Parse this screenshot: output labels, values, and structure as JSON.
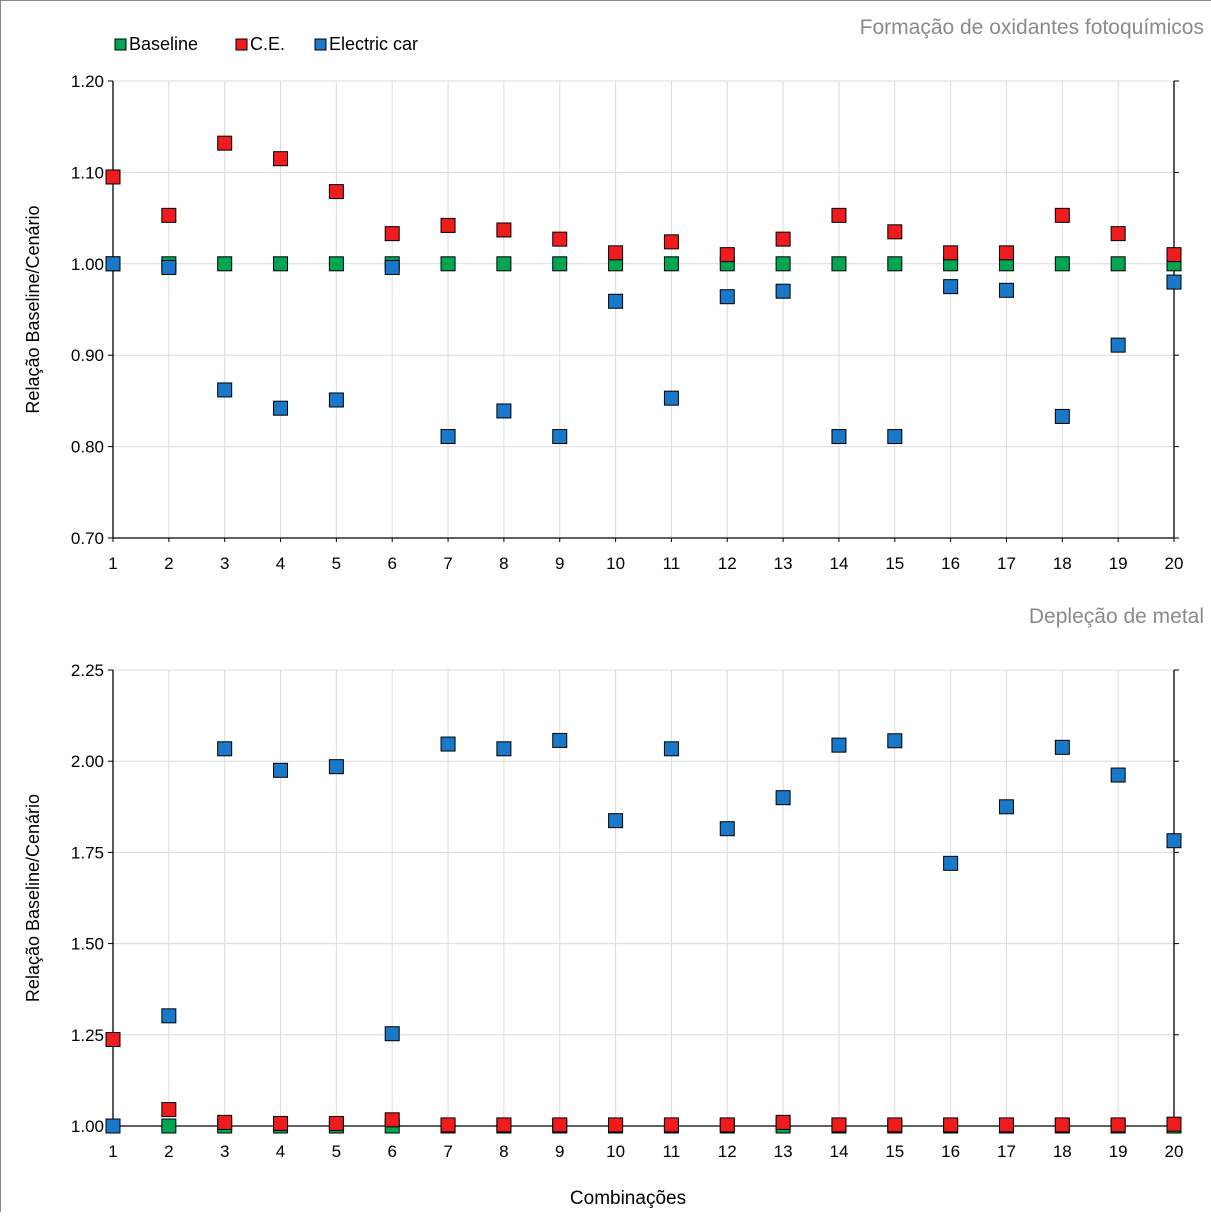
{
  "legend": [
    {
      "name": "Baseline",
      "color": "#00a651"
    },
    {
      "name": "C.E.",
      "color": "#ee1c1c"
    },
    {
      "name": "Electric car",
      "color": "#1a78c8"
    }
  ],
  "chart_data": [
    {
      "type": "scatter",
      "title": "Formação de oxidantes fotoquímicos",
      "xlabel": "",
      "ylabel": "Relação Baseline/Cenário",
      "x": [
        1,
        2,
        3,
        4,
        5,
        6,
        7,
        8,
        9,
        10,
        11,
        12,
        13,
        14,
        15,
        16,
        17,
        18,
        19,
        20
      ],
      "xticks": [
        "1",
        "2",
        "3",
        "4",
        "5",
        "6",
        "7",
        "8",
        "9",
        "10",
        "11",
        "12",
        "13",
        "14",
        "15",
        "16",
        "17",
        "18",
        "19",
        "20"
      ],
      "ylim": [
        0.7,
        1.2
      ],
      "yticks": [
        "0.70",
        "0.80",
        "0.90",
        "1.00",
        "1.10",
        "1.20"
      ],
      "ytick_values": [
        0.7,
        0.8,
        0.9,
        1.0,
        1.1,
        1.2
      ],
      "grid": true,
      "legend_position": "top-left",
      "series": [
        {
          "name": "Baseline",
          "color": "#00a651",
          "values": [
            1.0,
            1.0,
            1.0,
            1.0,
            1.0,
            1.0,
            1.0,
            1.0,
            1.0,
            1.0,
            1.0,
            1.0,
            1.0,
            1.0,
            1.0,
            1.0,
            1.0,
            1.0,
            1.0,
            1.0
          ]
        },
        {
          "name": "C.E.",
          "color": "#ee1c1c",
          "values": [
            1.095,
            1.053,
            1.132,
            1.115,
            1.079,
            1.033,
            1.042,
            1.037,
            1.027,
            1.012,
            1.024,
            1.01,
            1.027,
            1.053,
            1.035,
            1.012,
            1.012,
            1.053,
            1.033,
            1.01
          ]
        },
        {
          "name": "Electric car",
          "color": "#1a78c8",
          "values": [
            1.0,
            0.996,
            0.862,
            0.842,
            0.851,
            0.996,
            0.811,
            0.839,
            0.811,
            0.959,
            0.853,
            0.964,
            0.97,
            0.811,
            0.811,
            0.975,
            0.971,
            0.833,
            0.911,
            0.98
          ]
        }
      ]
    },
    {
      "type": "scatter",
      "title": "Depleção de metal",
      "xlabel": "Combinações",
      "ylabel": "Relação Baseline/Cenário",
      "x": [
        1,
        2,
        3,
        4,
        5,
        6,
        7,
        8,
        9,
        10,
        11,
        12,
        13,
        14,
        15,
        16,
        17,
        18,
        19,
        20
      ],
      "xticks": [
        "1",
        "2",
        "3",
        "4",
        "5",
        "6",
        "7",
        "8",
        "9",
        "10",
        "11",
        "12",
        "13",
        "14",
        "15",
        "16",
        "17",
        "18",
        "19",
        "20"
      ],
      "ylim": [
        1.0,
        2.25
      ],
      "yticks": [
        "1.00",
        "1.25",
        "1.50",
        "1.75",
        "2.00",
        "2.25"
      ],
      "ytick_values": [
        1.0,
        1.25,
        1.5,
        1.75,
        2.0,
        2.25
      ],
      "grid": true,
      "series": [
        {
          "name": "Baseline",
          "color": "#00a651",
          "values": [
            1.0,
            1.0,
            1.0,
            1.0,
            1.0,
            1.0,
            1.0,
            1.0,
            1.0,
            1.0,
            1.0,
            1.0,
            1.0,
            1.0,
            1.0,
            1.0,
            1.0,
            1.0,
            1.0,
            1.0
          ]
        },
        {
          "name": "C.E.",
          "color": "#ee1c1c",
          "values": [
            1.237,
            1.045,
            1.01,
            1.007,
            1.007,
            1.017,
            1.003,
            1.003,
            1.003,
            1.003,
            1.003,
            1.003,
            1.01,
            1.003,
            1.003,
            1.003,
            1.003,
            1.003,
            1.003,
            1.005
          ]
        },
        {
          "name": "Electric car",
          "color": "#1a78c8",
          "values": [
            1.0,
            1.302,
            2.034,
            1.975,
            1.985,
            1.253,
            2.047,
            2.034,
            2.057,
            1.837,
            2.034,
            1.815,
            1.9,
            2.044,
            2.056,
            1.72,
            1.875,
            2.038,
            1.962,
            1.782
          ]
        }
      ]
    }
  ]
}
